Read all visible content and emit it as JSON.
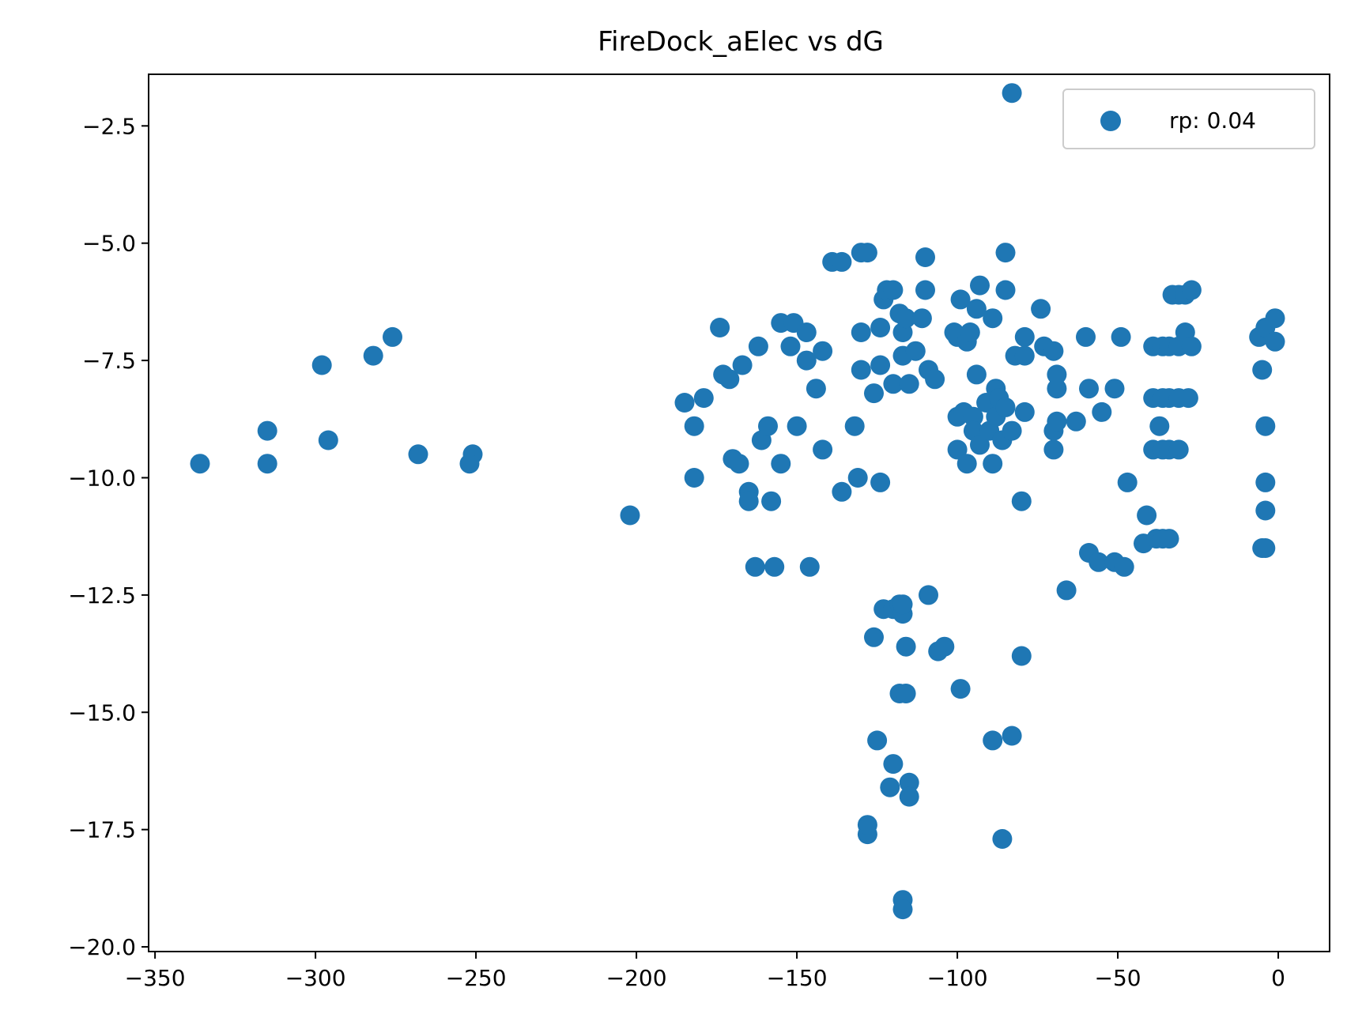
{
  "chart_data": {
    "type": "scatter",
    "title": "FireDock_aElec vs dG",
    "xlabel": "",
    "ylabel": "",
    "xlim": [
      -352,
      16
    ],
    "ylim": [
      -20.1,
      -1.4
    ],
    "xticks": [
      -350,
      -300,
      -250,
      -200,
      -150,
      -100,
      -50,
      0
    ],
    "yticks": [
      -20.0,
      -17.5,
      -15.0,
      -12.5,
      -10.0,
      -7.5,
      -5.0,
      -2.5
    ],
    "xtick_labels": [
      "−350",
      "−300",
      "−250",
      "−200",
      "−150",
      "−100",
      "−50",
      "0"
    ],
    "ytick_labels": [
      "−20.0",
      "−17.5",
      "−15.0",
      "−12.5",
      "−10.0",
      "−7.5",
      "−5.0",
      "−2.5"
    ],
    "grid": false,
    "legend": {
      "position": "top-right"
    },
    "series": [
      {
        "name": "rp: 0.04",
        "color": "#1f77b4",
        "points": [
          [
            -336,
            -9.7
          ],
          [
            -315,
            -9.0
          ],
          [
            -315,
            -9.7
          ],
          [
            -298,
            -7.6
          ],
          [
            -296,
            -9.2
          ],
          [
            -282,
            -7.4
          ],
          [
            -276,
            -7.0
          ],
          [
            -268,
            -9.5
          ],
          [
            -251,
            -9.5
          ],
          [
            -252,
            -9.7
          ],
          [
            -202,
            -10.8
          ],
          [
            -185,
            -8.4
          ],
          [
            -182,
            -8.9
          ],
          [
            -182,
            -10.0
          ],
          [
            -179,
            -8.3
          ],
          [
            -174,
            -6.8
          ],
          [
            -173,
            -7.8
          ],
          [
            -171,
            -7.9
          ],
          [
            -170,
            -9.6
          ],
          [
            -168,
            -9.7
          ],
          [
            -167,
            -7.6
          ],
          [
            -165,
            -10.3
          ],
          [
            -165,
            -10.5
          ],
          [
            -163,
            -11.9
          ],
          [
            -162,
            -7.2
          ],
          [
            -161,
            -9.2
          ],
          [
            -159,
            -8.9
          ],
          [
            -158,
            -10.5
          ],
          [
            -157,
            -11.9
          ],
          [
            -155,
            -6.7
          ],
          [
            -155,
            -9.7
          ],
          [
            -152,
            -7.2
          ],
          [
            -151,
            -6.7
          ],
          [
            -150,
            -8.9
          ],
          [
            -147,
            -6.9
          ],
          [
            -147,
            -7.5
          ],
          [
            -146,
            -11.9
          ],
          [
            -144,
            -8.1
          ],
          [
            -142,
            -7.3
          ],
          [
            -142,
            -9.4
          ],
          [
            -139,
            -5.4
          ],
          [
            -136,
            -5.4
          ],
          [
            -136,
            -10.3
          ],
          [
            -132,
            -8.9
          ],
          [
            -131,
            -10.0
          ],
          [
            -130,
            -5.2
          ],
          [
            -130,
            -6.9
          ],
          [
            -130,
            -7.7
          ],
          [
            -128,
            -5.2
          ],
          [
            -126,
            -8.2
          ],
          [
            -124,
            -6.8
          ],
          [
            -124,
            -7.6
          ],
          [
            -124,
            -10.1
          ],
          [
            -123,
            -6.2
          ],
          [
            -122,
            -6.0
          ],
          [
            -120,
            -6.0
          ],
          [
            -120,
            -8.0
          ],
          [
            -118,
            -6.5
          ],
          [
            -117,
            -7.4
          ],
          [
            -117,
            -6.9
          ],
          [
            -116,
            -6.6
          ],
          [
            -115,
            -8.0
          ],
          [
            -113,
            -7.3
          ],
          [
            -111,
            -6.6
          ],
          [
            -110,
            -5.3
          ],
          [
            -110,
            -6.0
          ],
          [
            -109,
            -7.7
          ],
          [
            -107,
            -7.9
          ],
          [
            -101,
            -6.9
          ],
          [
            -100,
            -7.0
          ],
          [
            -100,
            -8.7
          ],
          [
            -100,
            -9.4
          ],
          [
            -99,
            -6.2
          ],
          [
            -98,
            -8.6
          ],
          [
            -97,
            -7.1
          ],
          [
            -97,
            -9.7
          ],
          [
            -96,
            -6.9
          ],
          [
            -95,
            -8.7
          ],
          [
            -95,
            -9.0
          ],
          [
            -94,
            -6.4
          ],
          [
            -94,
            -7.8
          ],
          [
            -93,
            -5.9
          ],
          [
            -93,
            -9.3
          ],
          [
            -91,
            -8.4
          ],
          [
            -90,
            -9.0
          ],
          [
            -89,
            -6.6
          ],
          [
            -89,
            -9.7
          ],
          [
            -88,
            -8.1
          ],
          [
            -88,
            -8.7
          ],
          [
            -87,
            -8.3
          ],
          [
            -86,
            -9.2
          ],
          [
            -85,
            -5.2
          ],
          [
            -85,
            -6.0
          ],
          [
            -85,
            -8.5
          ],
          [
            -83,
            -9.0
          ],
          [
            -83,
            -1.8
          ],
          [
            -82,
            -7.4
          ],
          [
            -80,
            -10.5
          ],
          [
            -79,
            -8.6
          ],
          [
            -79,
            -7.0
          ],
          [
            -79,
            -7.4
          ],
          [
            -74,
            -6.4
          ],
          [
            -73,
            -7.2
          ],
          [
            -70,
            -7.3
          ],
          [
            -70,
            -9.0
          ],
          [
            -70,
            -9.4
          ],
          [
            -69,
            -7.8
          ],
          [
            -69,
            -8.1
          ],
          [
            -69,
            -8.8
          ],
          [
            -63,
            -8.8
          ],
          [
            -60,
            -7.0
          ],
          [
            -59,
            -8.1
          ],
          [
            -59,
            -11.6
          ],
          [
            -56,
            -11.8
          ],
          [
            -55,
            -8.6
          ],
          [
            -51,
            -8.1
          ],
          [
            -51,
            -11.8
          ],
          [
            -49,
            -7.0
          ],
          [
            -48,
            -11.9
          ],
          [
            -47,
            -10.1
          ],
          [
            -41,
            -10.8
          ],
          [
            -42,
            -11.4
          ],
          [
            -39,
            -7.2
          ],
          [
            -39,
            -8.3
          ],
          [
            -39,
            -9.4
          ],
          [
            -38,
            -11.3
          ],
          [
            -37,
            -8.9
          ],
          [
            -36,
            -7.2
          ],
          [
            -36,
            -8.3
          ],
          [
            -36,
            -9.4
          ],
          [
            -36,
            -11.3
          ],
          [
            -34,
            -7.2
          ],
          [
            -34,
            -8.3
          ],
          [
            -34,
            -9.4
          ],
          [
            -34,
            -11.3
          ],
          [
            -33,
            -6.1
          ],
          [
            -31,
            -6.1
          ],
          [
            -31,
            -7.2
          ],
          [
            -31,
            -8.3
          ],
          [
            -31,
            -9.4
          ],
          [
            -29,
            -6.9
          ],
          [
            -29,
            -6.1
          ],
          [
            -28,
            -8.3
          ],
          [
            -27,
            -7.2
          ],
          [
            -27,
            -6.0
          ],
          [
            -6,
            -7.0
          ],
          [
            -5,
            -7.7
          ],
          [
            -5,
            -11.5
          ],
          [
            -4,
            -6.8
          ],
          [
            -4,
            -11.5
          ],
          [
            -4,
            -10.1
          ],
          [
            -4,
            -10.7
          ],
          [
            -4,
            -8.9
          ],
          [
            -1,
            -6.6
          ],
          [
            -1,
            -7.1
          ],
          [
            -128,
            -17.6
          ],
          [
            -128,
            -17.4
          ],
          [
            -126,
            -13.4
          ],
          [
            -125,
            -15.6
          ],
          [
            -123,
            -12.8
          ],
          [
            -121,
            -16.6
          ],
          [
            -120,
            -12.8
          ],
          [
            -120,
            -16.1
          ],
          [
            -118,
            -12.7
          ],
          [
            -118,
            -14.6
          ],
          [
            -117,
            -12.9
          ],
          [
            -117,
            -12.7
          ],
          [
            -117,
            -19.0
          ],
          [
            -117,
            -19.2
          ],
          [
            -116,
            -13.6
          ],
          [
            -116,
            -14.6
          ],
          [
            -115,
            -16.5
          ],
          [
            -115,
            -16.8
          ],
          [
            -109,
            -12.5
          ],
          [
            -106,
            -13.7
          ],
          [
            -104,
            -13.6
          ],
          [
            -99,
            -14.5
          ],
          [
            -89,
            -15.6
          ],
          [
            -86,
            -17.7
          ],
          [
            -83,
            -15.5
          ],
          [
            -80,
            -13.8
          ],
          [
            -66,
            -12.4
          ]
        ]
      }
    ]
  }
}
